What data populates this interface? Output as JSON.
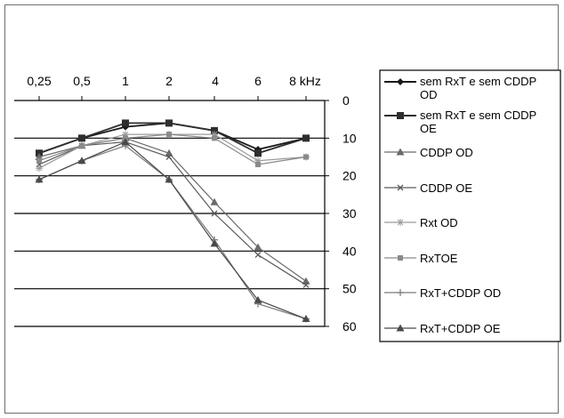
{
  "chart_data": {
    "type": "line",
    "categories": [
      "0,25",
      "0,5",
      "1",
      "2",
      "4",
      "6",
      "8 kHz"
    ],
    "y_ticks": [
      "0",
      "10",
      "20",
      "30",
      "40",
      "50",
      "60"
    ],
    "ylim": [
      0,
      60
    ],
    "y_inverted": true,
    "grid": "horizontal",
    "legend_position": "right",
    "series": [
      {
        "name": "sem RxT e sem CDDP OD",
        "marker": "diamond",
        "color": "#1a1a1a",
        "values": [
          14,
          10,
          7,
          6,
          8,
          13,
          10
        ]
      },
      {
        "name": "sem RxT e sem CDDP OE",
        "marker": "square",
        "color": "#2e2e2e",
        "values": [
          14,
          10,
          6,
          6,
          8,
          14,
          10
        ]
      },
      {
        "name": "CDDP OD",
        "marker": "triangle",
        "color": "#6a6a6a",
        "values": [
          15,
          12,
          10,
          14,
          27,
          39,
          48
        ]
      },
      {
        "name": "CDDP OE",
        "marker": "x",
        "color": "#5a5a5a",
        "values": [
          17,
          12,
          11,
          15,
          30,
          41,
          49
        ]
      },
      {
        "name": "Rxt OD",
        "marker": "star",
        "color": "#9a9a9a",
        "values": [
          18,
          12,
          9,
          9,
          9,
          16,
          15
        ]
      },
      {
        "name": "RxTOE",
        "marker": "square-small",
        "color": "#8a8a8a",
        "values": [
          16,
          12,
          10,
          9,
          10,
          17,
          15
        ]
      },
      {
        "name": "RxT+CDDP OD",
        "marker": "plus",
        "color": "#7a7a7a",
        "values": [
          21,
          16,
          12,
          21,
          37,
          54,
          58
        ]
      },
      {
        "name": "RxT+CDDP OE",
        "marker": "triangle",
        "color": "#4a4a4a",
        "values": [
          21,
          16,
          11,
          21,
          38,
          53,
          58
        ]
      }
    ]
  },
  "legend": {
    "line1": [
      "sem RxT e sem CDDP",
      "OD"
    ],
    "line2": [
      "sem RxT e sem CDDP",
      "OE"
    ]
  }
}
